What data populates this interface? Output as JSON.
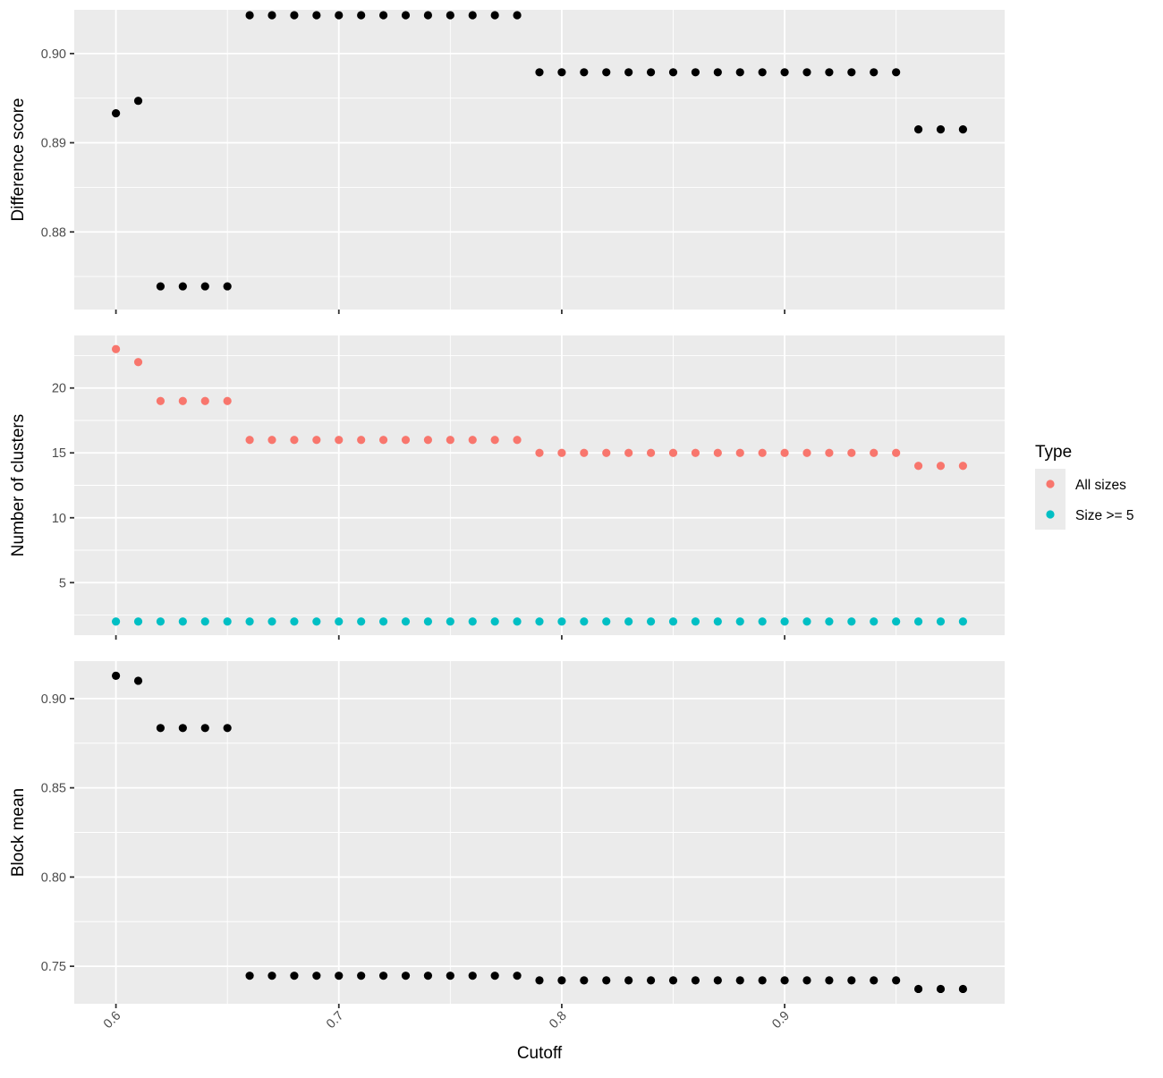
{
  "chart_data": {
    "type": "scatter",
    "layout": "three vertically stacked panels sharing the x axis",
    "xlabel": "Cutoff",
    "x_ticks": [
      "0.6",
      "0.7",
      "0.8",
      "0.9"
    ],
    "x_tick_values": [
      0.6,
      0.7,
      0.8,
      0.9
    ],
    "xlim": [
      0.5813,
      0.9987
    ],
    "x": [
      0.6,
      0.61,
      0.62,
      0.63,
      0.64,
      0.65,
      0.66,
      0.67,
      0.68,
      0.69,
      0.7,
      0.71,
      0.72,
      0.73,
      0.74,
      0.75,
      0.76,
      0.77,
      0.78,
      0.79,
      0.8,
      0.81,
      0.82,
      0.83,
      0.84,
      0.85,
      0.86,
      0.87,
      0.88,
      0.89,
      0.9,
      0.91,
      0.92,
      0.93,
      0.94,
      0.95,
      0.96,
      0.97,
      0.98
    ],
    "grid": true,
    "background": "#EBEBEB",
    "panels": [
      {
        "ylabel": "Difference score",
        "y_ticks": [
          "0.88",
          "0.89",
          "0.90"
        ],
        "y_tick_values": [
          0.88,
          0.89,
          0.9
        ],
        "ylim": [
          0.8713,
          0.9049
        ],
        "series": [
          {
            "color": "#000000",
            "values": [
              0.8933,
              0.8947,
              0.8739,
              0.8739,
              0.8739,
              0.8739,
              0.9043,
              0.9043,
              0.9043,
              0.9043,
              0.9043,
              0.9043,
              0.9043,
              0.9043,
              0.9043,
              0.9043,
              0.9043,
              0.9043,
              0.9043,
              0.8979,
              0.8979,
              0.8979,
              0.8979,
              0.8979,
              0.8979,
              0.8979,
              0.8979,
              0.8979,
              0.8979,
              0.8979,
              0.8979,
              0.8979,
              0.8979,
              0.8979,
              0.8979,
              0.8979,
              0.8915,
              0.8915,
              0.8915
            ]
          }
        ]
      },
      {
        "ylabel": "Number of clusters",
        "y_ticks": [
          "5",
          "10",
          "15",
          "20"
        ],
        "y_tick_values": [
          5,
          10,
          15,
          20
        ],
        "ylim": [
          0.95,
          24.05
        ],
        "series": [
          {
            "name": "All sizes",
            "color": "#F8766D",
            "values": [
              23,
              22,
              19,
              19,
              19,
              19,
              16,
              16,
              16,
              16,
              16,
              16,
              16,
              16,
              16,
              16,
              16,
              16,
              16,
              15,
              15,
              15,
              15,
              15,
              15,
              15,
              15,
              15,
              15,
              15,
              15,
              15,
              15,
              15,
              15,
              15,
              14,
              14,
              14
            ]
          },
          {
            "name": "Size >= 5",
            "color": "#00BFC4",
            "values": [
              2,
              2,
              2,
              2,
              2,
              2,
              2,
              2,
              2,
              2,
              2,
              2,
              2,
              2,
              2,
              2,
              2,
              2,
              2,
              2,
              2,
              2,
              2,
              2,
              2,
              2,
              2,
              2,
              2,
              2,
              2,
              2,
              2,
              2,
              2,
              2,
              2,
              2,
              2
            ]
          }
        ]
      },
      {
        "ylabel": "Block mean",
        "y_ticks": [
          "0.75",
          "0.80",
          "0.85",
          "0.90"
        ],
        "y_tick_values": [
          0.75,
          0.8,
          0.85,
          0.9
        ],
        "ylim": [
          0.729,
          0.921
        ],
        "series": [
          {
            "color": "#000000",
            "values": [
              0.9128,
              0.91,
              0.8835,
              0.8835,
              0.8835,
              0.8835,
              0.7447,
              0.7447,
              0.7447,
              0.7447,
              0.7447,
              0.7447,
              0.7447,
              0.7447,
              0.7447,
              0.7447,
              0.7447,
              0.7447,
              0.7447,
              0.7421,
              0.7421,
              0.7421,
              0.7421,
              0.7421,
              0.7421,
              0.7421,
              0.7421,
              0.7421,
              0.7421,
              0.7421,
              0.7421,
              0.7421,
              0.7421,
              0.7421,
              0.7421,
              0.7421,
              0.7373,
              0.7373,
              0.7373
            ]
          }
        ]
      }
    ],
    "legend": {
      "title": "Type",
      "placement": "right",
      "entries": [
        {
          "label": "All sizes",
          "color": "#F8766D"
        },
        {
          "label": "Size >= 5",
          "color": "#00BFC4"
        }
      ]
    }
  }
}
